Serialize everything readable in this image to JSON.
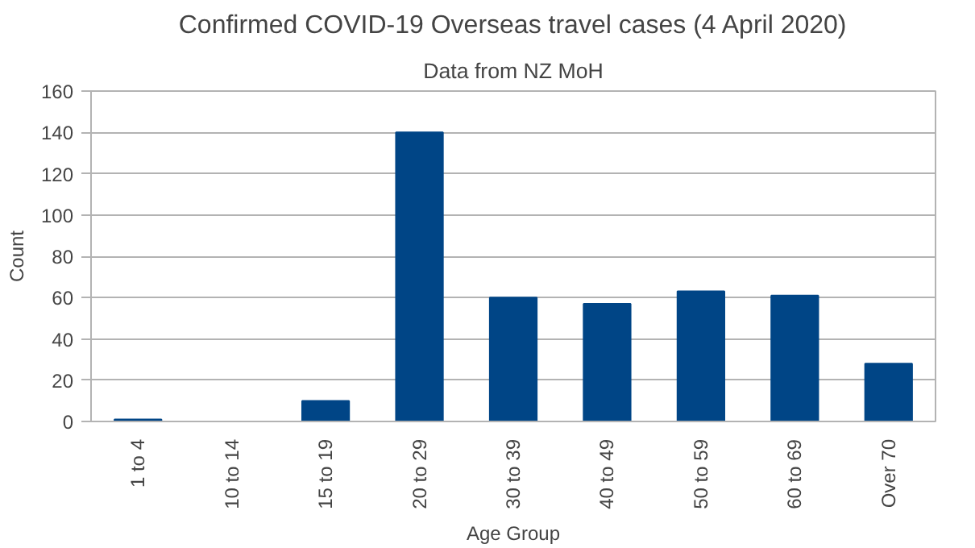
{
  "chart_data": {
    "type": "bar",
    "title": "Confirmed COVID-19 Overseas travel cases (4 April 2020)",
    "subtitle": "Data from NZ MoH",
    "xlabel": "Age Group",
    "ylabel": "Count",
    "categories": [
      "1 to 4",
      "10 to 14",
      "15 to 19",
      "20 to 29",
      "30 to 39",
      "40 to 49",
      "50 to 59",
      "60 to 69",
      "Over 70"
    ],
    "values": [
      1,
      0,
      10,
      140,
      60,
      57,
      63,
      61,
      28
    ],
    "color": "#004586",
    "ylim": [
      0,
      160
    ],
    "yticks": [
      0,
      20,
      40,
      60,
      80,
      100,
      120,
      140,
      160
    ],
    "grid": "y"
  }
}
